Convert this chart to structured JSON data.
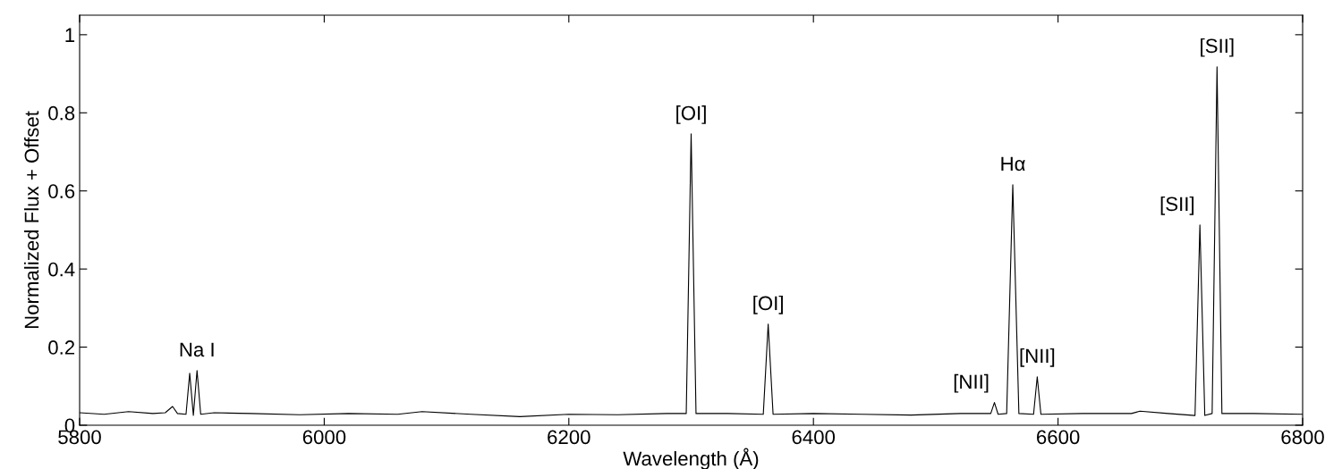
{
  "chart_data": {
    "type": "line",
    "xlabel": "Wavelength (Å)",
    "ylabel": "Normalized Flux + Offset",
    "x": [
      5800,
      5820,
      5840,
      5860,
      5870,
      5876,
      5880,
      5887,
      5890,
      5893,
      5896,
      5899,
      5910,
      5940,
      5980,
      6020,
      6060,
      6080,
      6120,
      6160,
      6200,
      6240,
      6280,
      6296,
      6300,
      6304,
      6330,
      6359,
      6363,
      6367,
      6400,
      6440,
      6480,
      6520,
      6545,
      6548,
      6551,
      6558,
      6563,
      6568,
      6580,
      6583,
      6586,
      6620,
      6660,
      6667,
      6690,
      6712,
      6716,
      6720,
      6726,
      6730,
      6734,
      6760,
      6800
    ],
    "series": [
      {
        "color": "#000000",
        "values": [
          0.032,
          0.028,
          0.035,
          0.03,
          0.032,
          0.048,
          0.03,
          0.028,
          0.133,
          0.025,
          0.14,
          0.028,
          0.032,
          0.03,
          0.027,
          0.03,
          0.028,
          0.035,
          0.028,
          0.022,
          0.028,
          0.027,
          0.03,
          0.03,
          0.746,
          0.03,
          0.03,
          0.028,
          0.259,
          0.028,
          0.03,
          0.028,
          0.026,
          0.03,
          0.03,
          0.058,
          0.028,
          0.03,
          0.616,
          0.03,
          0.028,
          0.124,
          0.028,
          0.03,
          0.03,
          0.036,
          0.03,
          0.025,
          0.513,
          0.025,
          0.03,
          0.918,
          0.03,
          0.03,
          0.028
        ]
      }
    ],
    "xlim": [
      5800,
      6800
    ],
    "xticks": [
      5800,
      6000,
      6200,
      6400,
      6600,
      6800
    ],
    "ylim": [
      0,
      1.05
    ],
    "yticks": [
      0,
      0.2,
      0.4,
      0.6,
      0.8,
      1
    ],
    "grid": false,
    "legend": false,
    "marker": "none",
    "line_style": "solid",
    "annotations": [
      {
        "text": "Na I",
        "x": 5896,
        "y": 0.14
      },
      {
        "text": "[OI]",
        "x": 6300,
        "y": 0.746
      },
      {
        "text": "[OI]",
        "x": 6363,
        "y": 0.259
      },
      {
        "text": "[NII]",
        "x": 6548,
        "y": 0.058
      },
      {
        "text": "Hα",
        "x": 6563,
        "y": 0.616
      },
      {
        "text": "[NII]",
        "x": 6583,
        "y": 0.124
      },
      {
        "text": "[SII]",
        "x": 6716,
        "y": 0.513
      },
      {
        "text": "[SII]",
        "x": 6730,
        "y": 0.918
      }
    ]
  }
}
